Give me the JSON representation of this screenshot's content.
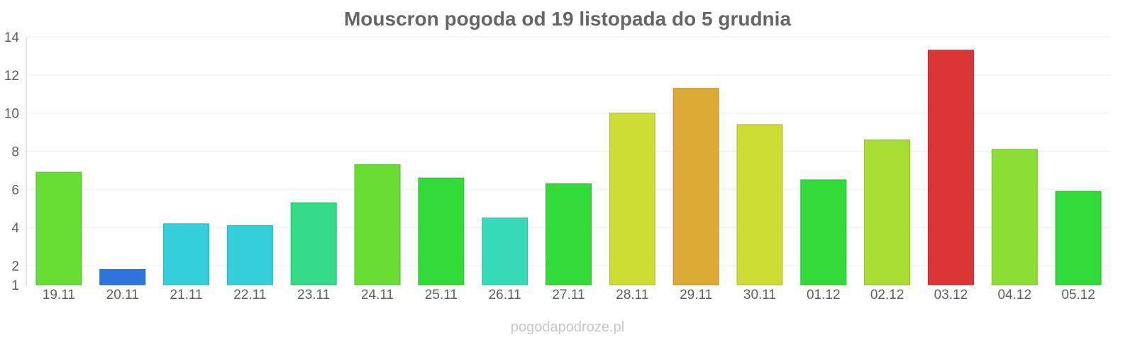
{
  "title": "Mouscron pogoda od 19 listopada do 5 grudnia",
  "watermark": "pogodapodroze.pl",
  "chart_data": {
    "type": "bar",
    "title": "Mouscron pogoda od 19 listopada do 5 grudnia",
    "xlabel": "",
    "ylabel": "",
    "categories": [
      "19.11",
      "20.11",
      "21.11",
      "22.11",
      "23.11",
      "24.11",
      "25.11",
      "26.11",
      "27.11",
      "28.11",
      "29.11",
      "30.11",
      "01.12",
      "02.12",
      "03.12",
      "04.12",
      "05.12"
    ],
    "values": [
      6.9,
      1.8,
      4.2,
      4.1,
      5.3,
      7.3,
      6.6,
      4.5,
      6.3,
      10.0,
      11.3,
      9.4,
      6.5,
      8.6,
      13.3,
      8.1,
      5.9
    ],
    "colors": [
      "#68dd35",
      "#3075dd",
      "#35cfdb",
      "#35cfdb",
      "#35db87",
      "#6add35",
      "#33db3a",
      "#35dbb9",
      "#33db3a",
      "#cedd33",
      "#dcaa35",
      "#cedd33",
      "#33db3a",
      "#a8dd35",
      "#dc3535",
      "#8ade35",
      "#33db3a"
    ],
    "yticks": [
      1,
      2,
      4,
      6,
      8,
      10,
      12,
      14
    ],
    "ylim": [
      1,
      14
    ],
    "grid": true,
    "legend": "none"
  }
}
